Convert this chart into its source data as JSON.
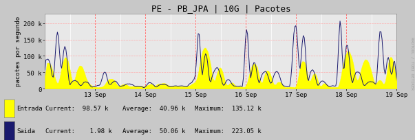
{
  "title": "PE - PB_JPA | 10G | Pacotes",
  "ylabel": "pacotes por segundo",
  "bg_color": "#c8c8c8",
  "plot_bg_color": "#e8e8e8",
  "grid_color_v": "#ffffff",
  "grid_color_h": "#ffaaaa",
  "yticks": [
    0,
    50000,
    100000,
    150000,
    200000
  ],
  "ytick_labels": [
    "0",
    "50 k",
    "100 k",
    "150 k",
    "200 k"
  ],
  "ymax": 230000,
  "xtick_labels": [
    "13 Sep",
    "14 Sep",
    "15 Sep",
    "16 Sep",
    "17 Sep",
    "18 Sep",
    "19 Sep"
  ],
  "entrada_color": "#ffff00",
  "entrada_edge_color": "#c8c800",
  "saida_color": "#1a1a6e",
  "red_vline_color": "#ff6666",
  "arrow_color": "#cc0000",
  "legend_entrada": "Entrada",
  "legend_saida": "Saida",
  "current_entrada": "98.57 k",
  "avg_entrada": "40.96 k",
  "max_entrada": "135.12 k",
  "current_saida": "1.98 k",
  "avg_saida": "50.06 k",
  "max_saida": "223.05 k",
  "watermark": "RRDTOOL / TOBI OETIKER",
  "title_fontsize": 9,
  "axis_fontsize": 6.5,
  "legend_fontsize": 6.5
}
